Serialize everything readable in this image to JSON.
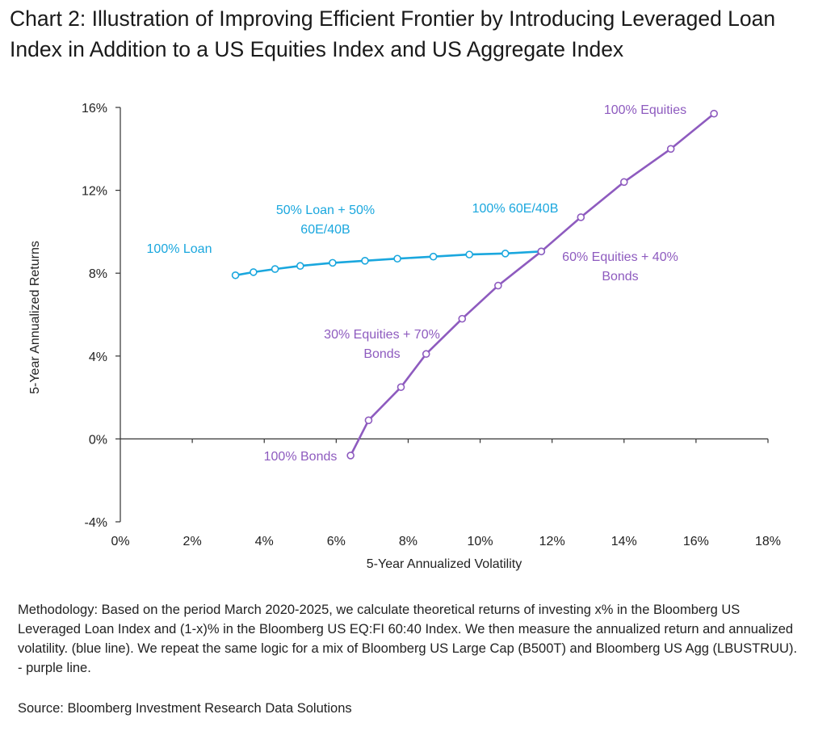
{
  "title": "Chart 2: Illustration of Improving Efficient Frontier by Introducing Leveraged Loan Index in Addition to a US Equities Index and US Aggregate Index",
  "methodology": "Methodology: Based on the period March 2020-2025, we calculate theoretical returns of investing x% in the Bloomberg US Leveraged Loan Index and (1-x)% in the Bloomberg US EQ:FI 60:40 Index. We then measure the annualized return and annualized volatility. (blue line). We repeat the same logic for a mix of Bloomberg US Large Cap (B500T) and Bloomberg US Agg (LBUSTRUU). - purple line.",
  "source": "Source: Bloomberg Investment Research Data Solutions",
  "colors": {
    "loan": "#1aa7de",
    "equity": "#8e5bbf",
    "axis": "#333333"
  },
  "chart_data": {
    "type": "line",
    "title": "Chart 2: Illustration of Improving Efficient Frontier by Introducing Leveraged Loan Index in Addition to a US Equities Index and US Aggregate Index",
    "xlabel": "5-Year Annualized Volatility",
    "ylabel": "5-Year Annualized Returns",
    "xlim": [
      0,
      18
    ],
    "ylim": [
      -4,
      16
    ],
    "xticks": [
      0,
      2,
      4,
      6,
      8,
      10,
      12,
      14,
      16,
      18
    ],
    "yticks": [
      -4,
      0,
      4,
      8,
      12,
      16
    ],
    "xtick_labels": [
      "0%",
      "2%",
      "4%",
      "6%",
      "8%",
      "10%",
      "12%",
      "14%",
      "16%",
      "18%"
    ],
    "ytick_labels": [
      "-4%",
      "0%",
      "4%",
      "8%",
      "12%",
      "16%"
    ],
    "grid": false,
    "series": [
      {
        "name": "Loan + 60E/40B",
        "color": "#1aa7de",
        "x": [
          3.2,
          3.7,
          4.3,
          5.0,
          5.9,
          6.8,
          7.7,
          8.7,
          9.7,
          10.7,
          11.7
        ],
        "y": [
          7.9,
          8.05,
          8.2,
          8.35,
          8.5,
          8.6,
          8.7,
          8.8,
          8.9,
          8.95,
          9.05
        ]
      },
      {
        "name": "Equities + Bonds",
        "color": "#8e5bbf",
        "x": [
          6.4,
          6.9,
          7.8,
          8.5,
          9.5,
          10.5,
          11.7,
          12.8,
          14.0,
          15.3,
          16.5
        ],
        "y": [
          -0.8,
          0.9,
          2.5,
          4.1,
          5.8,
          7.4,
          9.05,
          10.7,
          12.4,
          14.0,
          15.7
        ]
      }
    ],
    "annotations": [
      {
        "lines": [
          "100% Loan"
        ],
        "color": "#1aa7de"
      },
      {
        "lines": [
          "50% Loan + 50%",
          "60E/40B"
        ],
        "color": "#1aa7de"
      },
      {
        "lines": [
          "100% 60E/40B"
        ],
        "color": "#1aa7de"
      },
      {
        "lines": [
          "100% Equities"
        ],
        "color": "#8e5bbf"
      },
      {
        "lines": [
          "60% Equities + 40%",
          "Bonds"
        ],
        "color": "#8e5bbf"
      },
      {
        "lines": [
          "30% Equities + 70%",
          "Bonds"
        ],
        "color": "#8e5bbf"
      },
      {
        "lines": [
          "100% Bonds"
        ],
        "color": "#8e5bbf"
      }
    ]
  }
}
